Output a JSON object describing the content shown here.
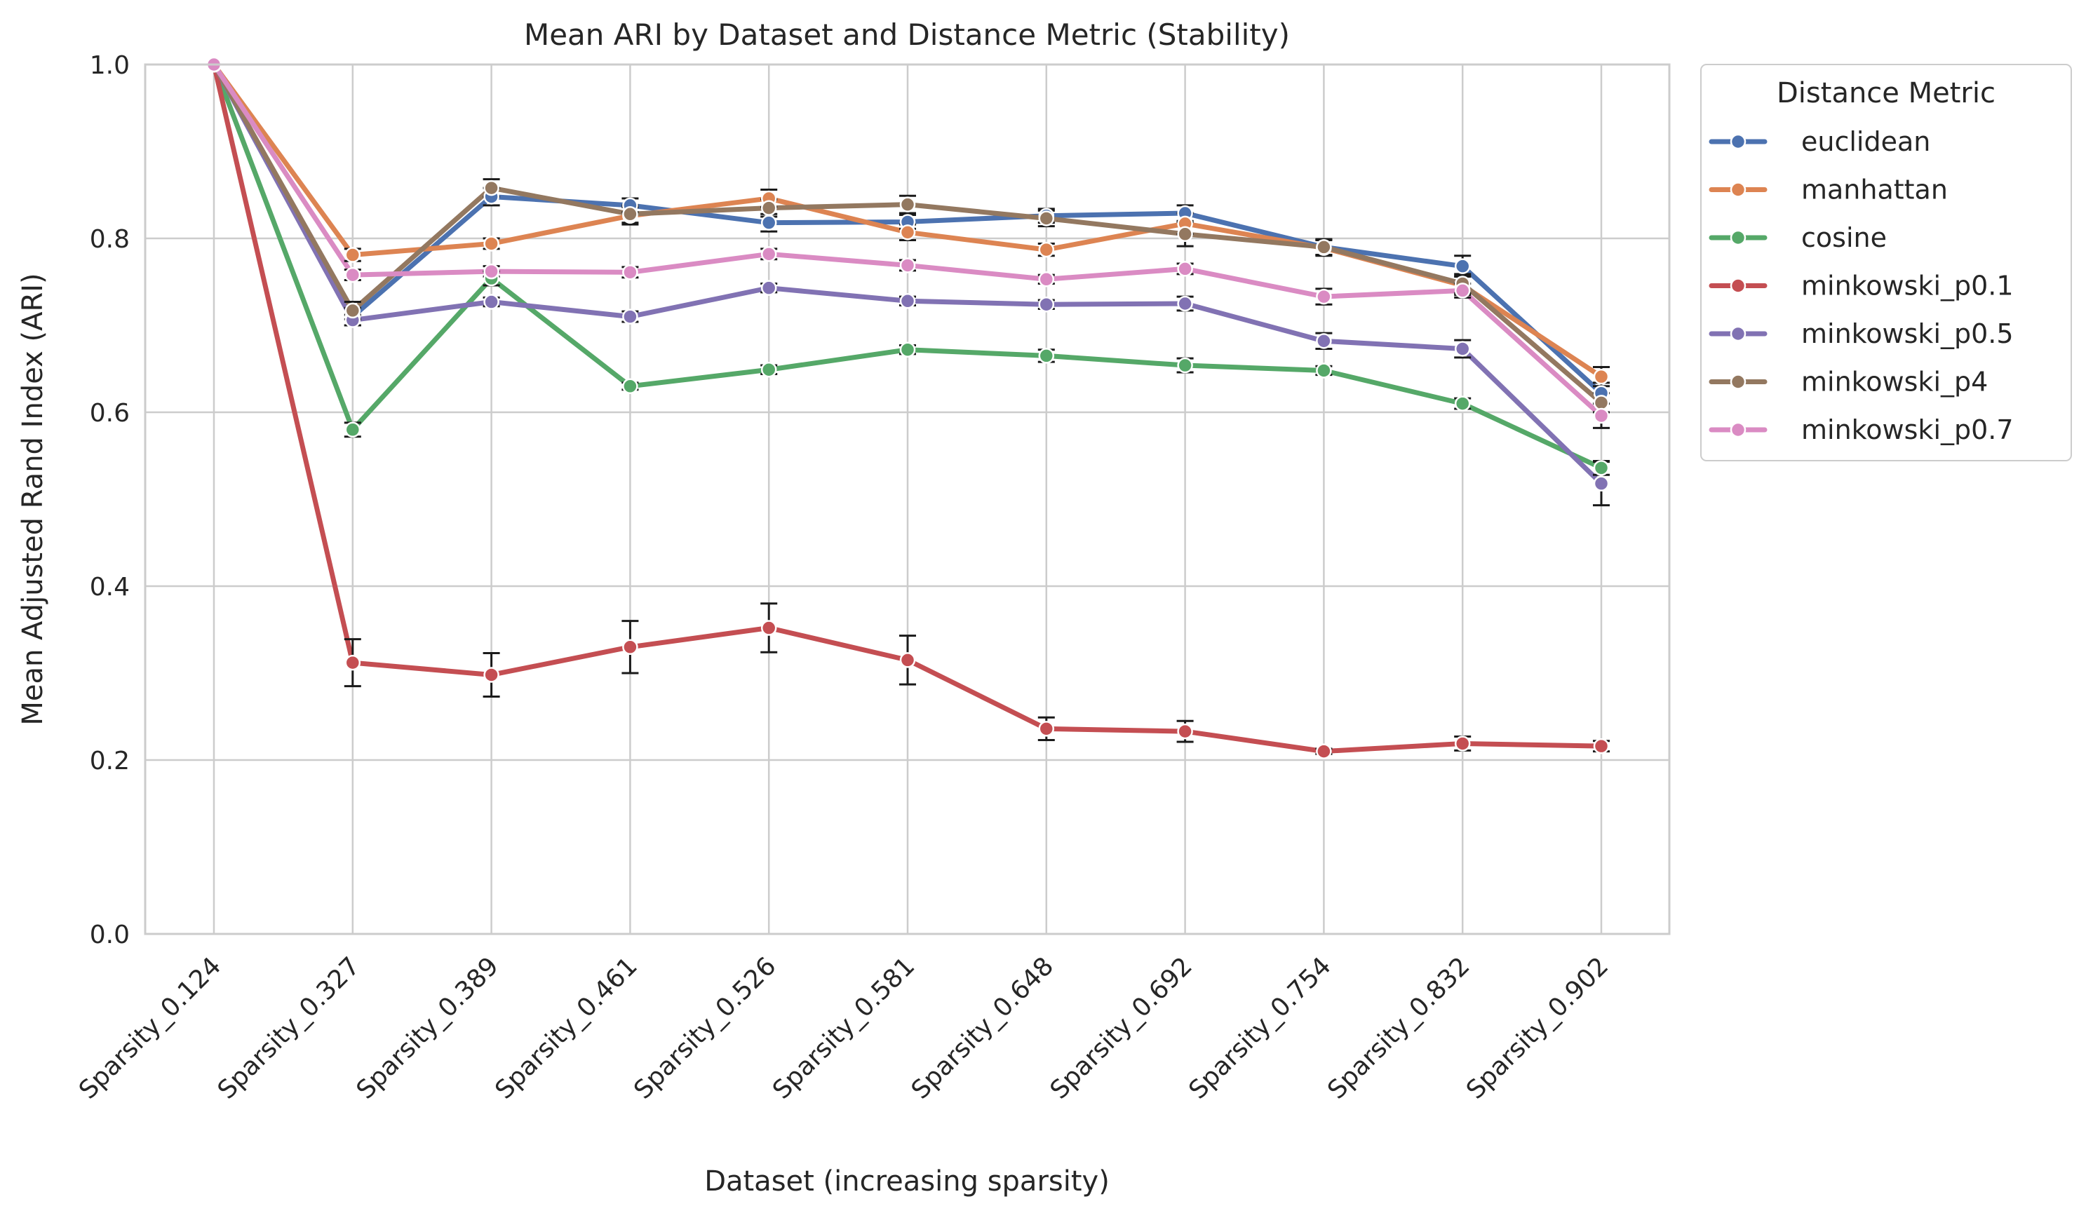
{
  "chart_data": {
    "type": "line",
    "title": "Mean ARI by Dataset and Distance Metric (Stability)",
    "xlabel": "Dataset (increasing sparsity)",
    "ylabel": "Mean Adjusted Rand Index (ARI)",
    "ylim": [
      0,
      1
    ],
    "yticks": [
      "0.0",
      "0.2",
      "0.4",
      "0.6",
      "0.8",
      "1.0"
    ],
    "grid": true,
    "legend_title": "Distance Metric",
    "legend_placement": "outside upper right",
    "categories": [
      "Sparsity_0.124",
      "Sparsity_0.327",
      "Sparsity_0.389",
      "Sparsity_0.461",
      "Sparsity_0.526",
      "Sparsity_0.581",
      "Sparsity_0.648",
      "Sparsity_0.692",
      "Sparsity_0.754",
      "Sparsity_0.832",
      "Sparsity_0.902"
    ],
    "series": [
      {
        "name": "euclidean",
        "color": "#4c72b0",
        "values": [
          1.0,
          0.71,
          0.848,
          0.838,
          0.818,
          0.819,
          0.826,
          0.829,
          0.79,
          0.768,
          0.622
        ],
        "errors": [
          0.0,
          0.01,
          0.01,
          0.008,
          0.01,
          0.008,
          0.008,
          0.009,
          0.009,
          0.012,
          0.012
        ]
      },
      {
        "name": "manhattan",
        "color": "#dd8452",
        "values": [
          1.0,
          0.781,
          0.794,
          0.826,
          0.846,
          0.807,
          0.787,
          0.817,
          0.789,
          0.746,
          0.641
        ],
        "errors": [
          0.0,
          0.007,
          0.006,
          0.01,
          0.01,
          0.009,
          0.007,
          0.012,
          0.009,
          0.011,
          0.011
        ]
      },
      {
        "name": "cosine",
        "color": "#55a868",
        "values": [
          1.0,
          0.58,
          0.754,
          0.63,
          0.649,
          0.672,
          0.665,
          0.654,
          0.648,
          0.61,
          0.536
        ],
        "errors": [
          0.0,
          0.008,
          0.008,
          0.004,
          0.005,
          0.005,
          0.007,
          0.008,
          0.005,
          0.006,
          0.008
        ]
      },
      {
        "name": "minkowski_p0.1",
        "color": "#c44e52",
        "values": [
          1.0,
          0.312,
          0.298,
          0.33,
          0.352,
          0.315,
          0.236,
          0.233,
          0.21,
          0.219,
          0.216
        ],
        "errors": [
          0.0,
          0.027,
          0.025,
          0.03,
          0.028,
          0.028,
          0.013,
          0.012,
          0.003,
          0.008,
          0.006
        ]
      },
      {
        "name": "minkowski_p0.5",
        "color": "#8172b3",
        "values": [
          1.0,
          0.706,
          0.727,
          0.71,
          0.743,
          0.728,
          0.724,
          0.725,
          0.682,
          0.673,
          0.518
        ],
        "errors": [
          0.0,
          0.006,
          0.005,
          0.006,
          0.005,
          0.005,
          0.005,
          0.008,
          0.009,
          0.01,
          0.025
        ]
      },
      {
        "name": "minkowski_p4",
        "color": "#937860",
        "values": [
          1.0,
          0.717,
          0.858,
          0.828,
          0.835,
          0.839,
          0.823,
          0.805,
          0.79,
          0.748,
          0.611
        ],
        "errors": [
          0.0,
          0.01,
          0.01,
          0.01,
          0.01,
          0.01,
          0.009,
          0.014,
          0.009,
          0.011,
          0.011
        ]
      },
      {
        "name": "minkowski_p0.7",
        "color": "#da8bc3",
        "values": [
          1.0,
          0.758,
          0.762,
          0.761,
          0.782,
          0.769,
          0.753,
          0.765,
          0.733,
          0.74,
          0.596
        ],
        "errors": [
          0.0,
          0.006,
          0.006,
          0.006,
          0.006,
          0.006,
          0.005,
          0.006,
          0.009,
          0.008,
          0.014
        ]
      }
    ]
  }
}
